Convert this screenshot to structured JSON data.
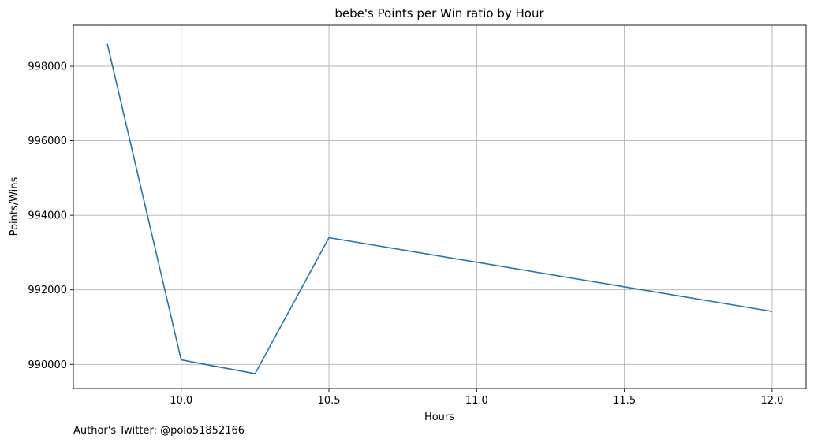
{
  "chart_data": {
    "type": "line",
    "title": "bebe's Points per Win ratio by Hour",
    "xlabel": "Hours",
    "ylabel": "Points/Wins",
    "grid": true,
    "xlim": [
      9.635,
      12.115
    ],
    "ylim": [
      989350,
      999100
    ],
    "xticks": [
      10.0,
      10.5,
      11.0,
      11.5,
      12.0
    ],
    "xtick_labels": [
      "10.0",
      "10.5",
      "11.0",
      "11.5",
      "12.0"
    ],
    "yticks": [
      990000,
      992000,
      994000,
      996000,
      998000
    ],
    "ytick_labels": [
      "990000",
      "992000",
      "994000",
      "996000",
      "998000"
    ],
    "series": [
      {
        "name": "Points/Wins",
        "color": "#1f77b4",
        "x": [
          9.75,
          10.0,
          10.25,
          10.5,
          12.0
        ],
        "y": [
          998600,
          990120,
          989750,
          993400,
          991420
        ]
      }
    ]
  },
  "footer": {
    "author_text": "Author's Twitter: @polo51852166"
  }
}
